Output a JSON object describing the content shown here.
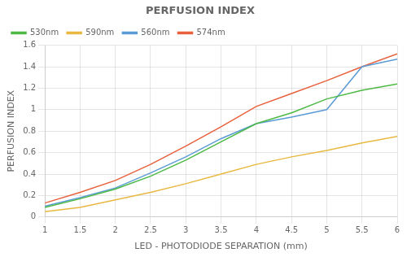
{
  "chart_data": {
    "type": "line",
    "title": "PERFUSION INDEX",
    "x_label": "LED - PHOTODIODE SEPARATION (mm)",
    "y_label": "PERFUSION INDEX",
    "x": [
      1,
      1.5,
      2,
      2.5,
      3,
      3.5,
      4,
      4.5,
      5,
      5.5,
      6
    ],
    "series": [
      {
        "name": "530nm",
        "color": "#4cb944",
        "values": [
          0.09,
          0.17,
          0.26,
          0.38,
          0.53,
          0.7,
          0.87,
          0.97,
          1.1,
          1.18,
          1.24
        ]
      },
      {
        "name": "590nm",
        "color": "#e8b840",
        "values": [
          0.05,
          0.09,
          0.16,
          0.23,
          0.31,
          0.4,
          0.49,
          0.56,
          0.62,
          0.69,
          0.75
        ]
      },
      {
        "name": "560nm",
        "color": "#5b9bd5",
        "values": [
          0.1,
          0.18,
          0.27,
          0.41,
          0.56,
          0.73,
          0.87,
          0.93,
          1.0,
          1.4,
          1.47
        ]
      },
      {
        "name": "574nm",
        "color": "#e8603c",
        "values": [
          0.13,
          0.23,
          0.34,
          0.49,
          0.66,
          0.84,
          1.03,
          1.15,
          1.27,
          1.4,
          1.52
        ]
      }
    ],
    "xlim": [
      1,
      6
    ],
    "xticks": [
      1,
      1.5,
      2,
      2.5,
      3,
      3.5,
      4,
      4.5,
      5,
      5.5,
      6
    ],
    "ylim": [
      0,
      1.6
    ],
    "yticks": [
      0,
      0.2,
      0.4,
      0.6,
      0.8,
      1,
      1.2,
      1.4,
      1.6
    ],
    "grid": true,
    "legend": "upper left"
  }
}
